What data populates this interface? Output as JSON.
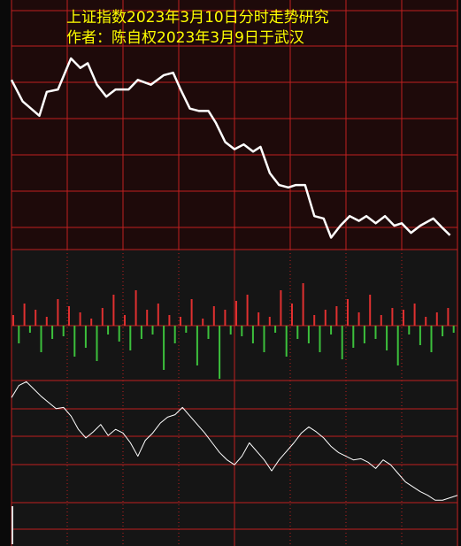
{
  "chart_data": [
    {
      "type": "line",
      "title": "上证指数2023年3月10日分时走势研究",
      "subtitle": "作者：陈自权2023年3月9日于武汉",
      "title_color": "#ffff00",
      "xlim": [
        0,
        240
      ],
      "ylim": [
        0,
        100
      ],
      "x": [
        0,
        6,
        15,
        19,
        25,
        32,
        37,
        41,
        46,
        51,
        56,
        63,
        68,
        75,
        82,
        87,
        91,
        96,
        101,
        106,
        110,
        115,
        120,
        125,
        130,
        134,
        139,
        144,
        149,
        153,
        158,
        163,
        168,
        172,
        177,
        182,
        187,
        191,
        196,
        201,
        206,
        210,
        215,
        220,
        227,
        232,
        236
      ],
      "series": [
        {
          "color": "#ffffff",
          "values": [
            71,
            62,
            56,
            66,
            67,
            80,
            76,
            78,
            69,
            64,
            67,
            67,
            71,
            69,
            73,
            74,
            67,
            59,
            58,
            58,
            53,
            45,
            42,
            44,
            41,
            43,
            32,
            27,
            26,
            27,
            27,
            14,
            13,
            5,
            10,
            14,
            12,
            14,
            11,
            14,
            10,
            11,
            7,
            10,
            13,
            9,
            6
          ]
        }
      ]
    },
    {
      "type": "bar",
      "xlim": [
        0,
        240
      ],
      "ylim": [
        -70,
        70
      ],
      "up_color": "#e03030",
      "down_color": "#3cc03c",
      "x": [
        0,
        3,
        6,
        9,
        12,
        15,
        18,
        21,
        24,
        27,
        30,
        33,
        36,
        39,
        42,
        45,
        48,
        51,
        54,
        57,
        60,
        63,
        66,
        69,
        72,
        75,
        78,
        81,
        84,
        87,
        90,
        93,
        96,
        99,
        102,
        105,
        108,
        111,
        114,
        117,
        120,
        123,
        126,
        129,
        132,
        135,
        138,
        141,
        144,
        147,
        150,
        153,
        156,
        159,
        162,
        165,
        168,
        171,
        174,
        177,
        180,
        183,
        186,
        189,
        192,
        195,
        198,
        201,
        204,
        207,
        210,
        213,
        216,
        219,
        222,
        225,
        228,
        231,
        234,
        237
      ],
      "values": [
        12,
        -20,
        25,
        -8,
        18,
        -30,
        10,
        -15,
        30,
        -12,
        22,
        -35,
        15,
        -25,
        8,
        -40,
        20,
        -10,
        35,
        -18,
        12,
        -28,
        40,
        -15,
        18,
        -10,
        25,
        -50,
        12,
        -20,
        10,
        -8,
        30,
        -45,
        8,
        -15,
        22,
        -60,
        18,
        -10,
        28,
        -12,
        35,
        -20,
        15,
        -30,
        10,
        -8,
        40,
        -35,
        25,
        -15,
        48,
        -20,
        12,
        -30,
        18,
        -10,
        22,
        -38,
        30,
        -25,
        15,
        -20,
        35,
        -15,
        12,
        -28,
        20,
        -45,
        18,
        -10,
        25,
        -22,
        10,
        -30,
        15,
        -12,
        20,
        -8
      ]
    },
    {
      "type": "line",
      "xlim": [
        0,
        240
      ],
      "ylim": [
        0,
        100
      ],
      "x": [
        0,
        4,
        8,
        12,
        16,
        20,
        24,
        28,
        32,
        36,
        40,
        44,
        48,
        52,
        56,
        60,
        64,
        68,
        72,
        76,
        80,
        84,
        88,
        92,
        96,
        100,
        104,
        108,
        112,
        116,
        120,
        124,
        128,
        132,
        136,
        140,
        144,
        148,
        152,
        156,
        160,
        164,
        168,
        172,
        176,
        180,
        184,
        188,
        192,
        196,
        200,
        204,
        208,
        212,
        216,
        220,
        224,
        228,
        232,
        236,
        240
      ],
      "series": [
        {
          "color": "#ffffff",
          "values": [
            86,
            96,
            99,
            93,
            87,
            82,
            77,
            78,
            71,
            60,
            53,
            58,
            64,
            55,
            60,
            57,
            49,
            38,
            51,
            57,
            65,
            70,
            72,
            78,
            71,
            64,
            57,
            49,
            41,
            35,
            31,
            38,
            49,
            42,
            35,
            26,
            35,
            42,
            49,
            57,
            62,
            58,
            53,
            46,
            41,
            38,
            35,
            36,
            33,
            28,
            35,
            31,
            24,
            17,
            13,
            9,
            6,
            2,
            2,
            4,
            6
          ]
        }
      ]
    }
  ]
}
